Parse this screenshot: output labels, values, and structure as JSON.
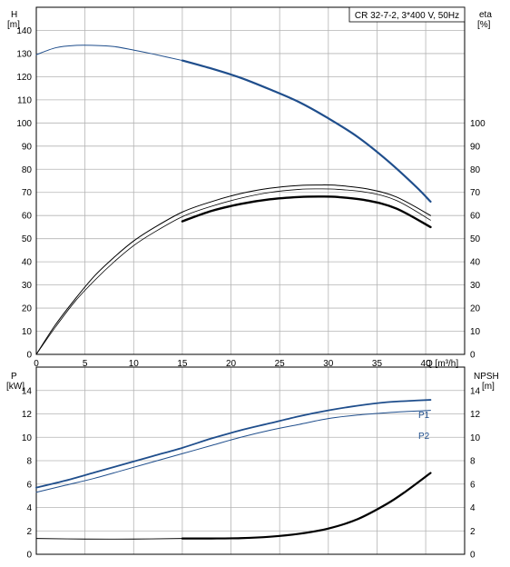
{
  "colors": {
    "blue": "#1f4e8c",
    "black": "#000000",
    "grid": "#b4b4b4"
  },
  "chart_data": [
    {
      "type": "line",
      "title": "CR 32-7-2, 3*400 V, 50Hz",
      "xlabel": "Q [m³/h]",
      "ylabel_left_top": "H",
      "ylabel_left_bottom": "[m]",
      "ylabel_right_top": "eta",
      "ylabel_right_bottom": "[%]",
      "xlim": [
        0,
        44
      ],
      "x_ticks": [
        "0",
        "5",
        "10",
        "15",
        "20",
        "25",
        "30",
        "35",
        "40"
      ],
      "ylim_left": [
        0,
        150
      ],
      "y_ticks_left": [
        "0",
        "10",
        "20",
        "30",
        "40",
        "50",
        "60",
        "70",
        "80",
        "90",
        "100",
        "110",
        "120",
        "130",
        "140"
      ],
      "ylim_right": [
        0,
        150
      ],
      "y_ticks_right": [
        "0",
        "10",
        "20",
        "30",
        "40",
        "50",
        "60",
        "70",
        "80",
        "90",
        "100"
      ],
      "grid": true,
      "series": [
        {
          "axis": "left",
          "style": "head-thin",
          "x": [
            0,
            2,
            4,
            6,
            8,
            10,
            12,
            15
          ],
          "y": [
            129.5,
            132.5,
            133.5,
            133.5,
            133,
            131.5,
            129.8,
            127
          ]
        },
        {
          "axis": "left",
          "style": "head-thick",
          "x": [
            15,
            18,
            21,
            24,
            27,
            30,
            33,
            36,
            39,
            40.5
          ],
          "y": [
            127,
            123.5,
            119.5,
            114.5,
            109,
            102,
            94,
            84,
            72.5,
            66
          ]
        },
        {
          "axis": "right",
          "style": "eta-outer",
          "x": [
            0,
            2,
            4,
            6,
            8,
            10,
            12,
            15,
            18,
            21,
            24,
            27,
            29,
            31,
            34,
            37,
            40.5
          ],
          "y": [
            0,
            13,
            24,
            34,
            42,
            49,
            54.5,
            61.5,
            66,
            69.5,
            71.8,
            73,
            73.2,
            73,
            71.5,
            68,
            60
          ]
        },
        {
          "axis": "right",
          "style": "eta-middle",
          "x": [
            0,
            2,
            4,
            6,
            8,
            10,
            12,
            15,
            18,
            21,
            24,
            27,
            29,
            31,
            34,
            37,
            40.5
          ],
          "y": [
            0,
            12,
            23,
            32,
            40,
            47,
            52.5,
            59.5,
            64,
            67.5,
            70,
            71.3,
            71.5,
            71.3,
            70,
            66.5,
            58
          ]
        },
        {
          "axis": "right",
          "style": "eta-thick",
          "x": [
            15,
            18,
            21,
            24,
            27,
            29,
            31,
            34,
            37,
            40.5
          ],
          "y": [
            57.5,
            62,
            65,
            67,
            68,
            68.2,
            68,
            66.5,
            63,
            55
          ]
        }
      ]
    },
    {
      "type": "line",
      "xlabel": "",
      "ylabel_left_top": "P",
      "ylabel_left_bottom": "[kW]",
      "ylabel_right_top": "NPSH",
      "ylabel_right_bottom": "[m]",
      "xlim": [
        0,
        44
      ],
      "ylim_left": [
        0,
        16
      ],
      "y_ticks_left": [
        "0",
        "2",
        "4",
        "6",
        "8",
        "10",
        "12",
        "14"
      ],
      "ylim_right": [
        0,
        16
      ],
      "y_ticks_right": [
        "0",
        "2",
        "4",
        "6",
        "8",
        "10",
        "12",
        "14"
      ],
      "grid": true,
      "series": [
        {
          "name": "P1",
          "axis": "left",
          "style": "p1",
          "x": [
            0,
            3,
            6,
            9,
            12,
            15,
            18,
            21,
            24,
            27,
            30,
            33,
            36,
            38,
            40.5
          ],
          "y": [
            5.7,
            6.3,
            7,
            7.7,
            8.4,
            9.1,
            9.9,
            10.6,
            11.2,
            11.8,
            12.3,
            12.7,
            13,
            13.1,
            13.2
          ]
        },
        {
          "name": "P2",
          "axis": "left",
          "style": "p2",
          "x": [
            0,
            3,
            6,
            9,
            12,
            15,
            18,
            21,
            24,
            27,
            30,
            33,
            36,
            38,
            40.5
          ],
          "y": [
            5.3,
            5.9,
            6.5,
            7.2,
            7.9,
            8.6,
            9.3,
            10,
            10.6,
            11.1,
            11.6,
            11.9,
            12.1,
            12.2,
            12.3
          ]
        },
        {
          "axis": "right",
          "style": "npsh-thin",
          "x": [
            0,
            5,
            10,
            15
          ],
          "y": [
            1.35,
            1.3,
            1.3,
            1.35
          ]
        },
        {
          "axis": "right",
          "style": "npsh-thick",
          "x": [
            15,
            18,
            21,
            24,
            27,
            30,
            33,
            36,
            38,
            40.5
          ],
          "y": [
            1.35,
            1.35,
            1.38,
            1.5,
            1.75,
            2.2,
            3,
            4.3,
            5.4,
            6.95
          ]
        }
      ]
    }
  ]
}
